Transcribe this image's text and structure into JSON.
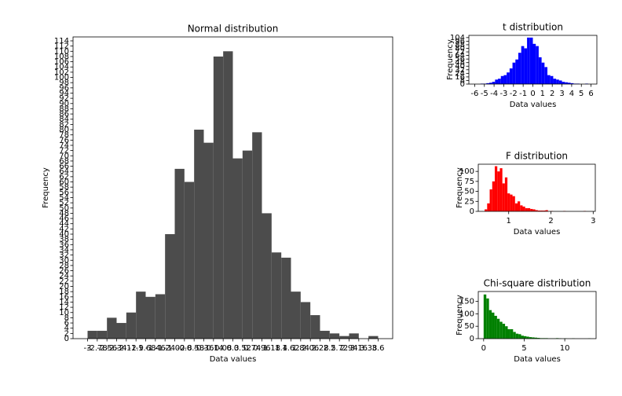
{
  "chart_data": [
    {
      "type": "histogram",
      "title": "Normal distribution",
      "xlabel": "Data values",
      "ylabel": "Frequency",
      "color": "#4c4c4c",
      "bins": [
        -3,
        -2.78,
        -2.56,
        -2.34,
        -2.12,
        -1.9,
        -1.68,
        -1.46,
        -1.24,
        -1.02,
        -0.8,
        -0.58,
        -0.36,
        -0.14,
        0.08,
        0.3,
        0.52,
        0.74,
        0.96,
        1.18,
        1.4,
        1.62,
        1.84,
        2.06,
        2.28,
        2.5,
        2.72,
        2.94,
        3.16,
        3.38,
        3.6
      ],
      "values": [
        3,
        3,
        8,
        6,
        10,
        18,
        16,
        17,
        40,
        65,
        60,
        80,
        75,
        108,
        110,
        69,
        72,
        79,
        48,
        33,
        31,
        18,
        14,
        9,
        3,
        2,
        1,
        2,
        0,
        1
      ],
      "xlim": [
        -3.33,
        3.93
      ],
      "ylim": [
        0,
        115.5
      ],
      "xticks": [
        -3,
        -2.78,
        -2.56,
        -2.34,
        -2.12,
        -1.9,
        -1.68,
        -1.46,
        -1.24,
        -1.02,
        -0.8,
        -0.58,
        -0.36,
        -0.14,
        0.08,
        0.3,
        0.52,
        0.74,
        0.96,
        1.18,
        1.4,
        1.62,
        1.84,
        2.06,
        2.28,
        2.5,
        2.72,
        2.94,
        3.16,
        3.38,
        3.6
      ],
      "yticks": [
        0,
        2,
        4,
        6,
        8,
        10,
        12,
        14,
        16,
        18,
        20,
        22,
        24,
        26,
        28,
        30,
        32,
        34,
        36,
        38,
        40,
        42,
        44,
        46,
        48,
        50,
        52,
        54,
        56,
        58,
        60,
        62,
        64,
        66,
        68,
        70,
        72,
        74,
        76,
        78,
        80,
        82,
        84,
        86,
        88,
        90,
        92,
        94,
        96,
        98,
        100,
        102,
        104,
        106,
        108,
        110,
        112,
        114
      ]
    },
    {
      "type": "histogram",
      "title": "t distribution",
      "xlabel": "Data values",
      "ylabel": "Frequency",
      "color": "#0000ff",
      "bins": [
        -6,
        -5.7,
        -5.4,
        -5.1,
        -4.8,
        -4.5,
        -4.2,
        -3.9,
        -3.6,
        -3.3,
        -3,
        -2.7,
        -2.4,
        -2.1,
        -1.8,
        -1.5,
        -1.2,
        -0.9,
        -0.6,
        -0.3,
        0,
        0.3,
        0.6,
        0.9,
        1.2,
        1.5,
        1.8,
        2.1,
        2.4,
        2.7,
        3,
        3.3,
        3.6,
        3.9,
        4.2,
        4.5,
        4.8,
        5.1,
        5.4,
        5.7,
        6
      ],
      "values": [
        0,
        0,
        1,
        1,
        2,
        3,
        5,
        10,
        12,
        18,
        20,
        26,
        35,
        48,
        55,
        70,
        85,
        80,
        104,
        104,
        90,
        85,
        60,
        48,
        38,
        20,
        18,
        12,
        10,
        8,
        5,
        4,
        3,
        2,
        1,
        1,
        0,
        0,
        1,
        0
      ],
      "xlim": [
        -6.6,
        6.6
      ],
      "ylim": [
        0,
        109
      ],
      "xticks": [
        -6,
        -5,
        -4,
        -3,
        -2,
        -1,
        0,
        1,
        2,
        3,
        4,
        5,
        6
      ],
      "yticks": [
        0,
        8,
        16,
        24,
        32,
        40,
        48,
        56,
        64,
        72,
        80,
        88,
        96,
        104
      ]
    },
    {
      "type": "histogram",
      "title": "F distribution",
      "xlabel": "Data values",
      "ylabel": "Frequency",
      "color": "#ff0000",
      "bins": [
        0.43,
        0.49,
        0.55,
        0.61,
        0.67,
        0.73,
        0.79,
        0.85,
        0.91,
        0.97,
        1.03,
        1.09,
        1.15,
        1.21,
        1.27,
        1.33,
        1.39,
        1.45,
        1.51,
        1.57,
        1.63,
        1.69,
        1.75,
        1.81,
        1.87,
        1.93,
        1.99,
        2.05,
        2.11,
        2.17,
        2.23,
        2.29,
        2.35,
        2.41,
        2.47,
        2.53,
        2.59,
        2.65,
        2.71,
        2.77,
        2.83
      ],
      "values": [
        5,
        20,
        55,
        75,
        113,
        100,
        108,
        70,
        85,
        45,
        42,
        38,
        20,
        25,
        15,
        12,
        8,
        8,
        6,
        5,
        3,
        2,
        2,
        2,
        3,
        0,
        1,
        0,
        0,
        0,
        0,
        1,
        0,
        0,
        0,
        0,
        0,
        0,
        0,
        1
      ],
      "xlim": [
        0.28,
        3.05
      ],
      "ylim": [
        0,
        118
      ],
      "xticks": [
        1,
        2,
        3
      ],
      "yticks": [
        0,
        25,
        50,
        75,
        100
      ]
    },
    {
      "type": "histogram",
      "title": "Chi-square distribution",
      "xlabel": "Data values",
      "ylabel": "Frequency",
      "color": "#008000",
      "bins": [
        0,
        0.33,
        0.66,
        0.99,
        1.32,
        1.65,
        1.98,
        2.31,
        2.64,
        2.97,
        3.3,
        3.63,
        3.96,
        4.29,
        4.62,
        4.95,
        5.28,
        5.61,
        5.94,
        6.27,
        6.6,
        6.93,
        7.26,
        7.59,
        7.92,
        8.25,
        8.58,
        8.91,
        9.24,
        9.57,
        9.9,
        10.23,
        10.56,
        10.89,
        11.22,
        11.55,
        11.88,
        12.21,
        12.54,
        12.87,
        13.2
      ],
      "values": [
        178,
        162,
        115,
        105,
        92,
        80,
        68,
        60,
        50,
        38,
        38,
        27,
        20,
        18,
        12,
        10,
        8,
        6,
        5,
        4,
        3,
        2,
        2,
        2,
        1,
        1,
        1,
        2,
        1,
        0,
        1,
        0,
        0,
        1,
        0,
        0,
        0,
        0,
        0,
        1
      ],
      "xlim": [
        -0.66,
        13.86
      ],
      "ylim": [
        0,
        190
      ],
      "xticks": [
        0,
        5,
        10
      ],
      "yticks": [
        0,
        50,
        100,
        150
      ]
    }
  ]
}
